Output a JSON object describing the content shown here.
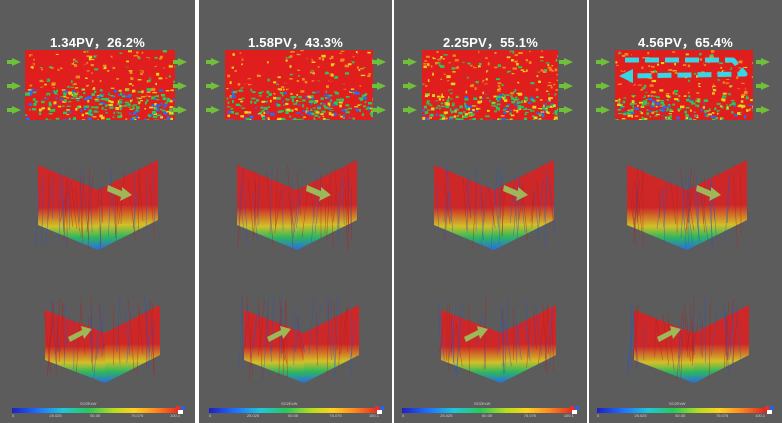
{
  "panels": [
    {
      "title": "1.34PV，26.2%"
    },
    {
      "title": "1.58PV，43.3%"
    },
    {
      "title": "2.25PV，55.1%"
    },
    {
      "title": "4.56PV，65.4%"
    }
  ],
  "colorbar": {
    "ticks": [
      "0",
      "25.025",
      "50.05",
      "75.075",
      "100.1"
    ],
    "title": "SO2ExW"
  },
  "colors": {
    "background": "#5c5c5c",
    "flow_arrow": "#6fbf3a",
    "highlight_arrow": "#35d7e6",
    "high_saturation": "#e11e1e",
    "mid_saturation": "#28c85a",
    "low_saturation": "#1e6fff"
  },
  "icons": {
    "injection_arrow": "green-arrow-icon",
    "flow_direction_arrow": "green-arrow-icon",
    "channel_arrow": "cyan-dashed-arrow-icon",
    "logo": "software-logo-icon"
  }
}
